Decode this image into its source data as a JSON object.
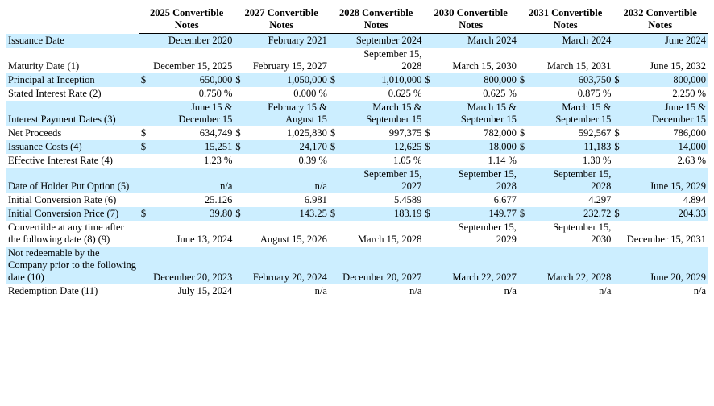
{
  "columns": [
    "2025 Convertible Notes",
    "2027 Convertible Notes",
    "2028 Convertible Notes",
    "2030 Convertible Notes",
    "2031 Convertible Notes",
    "2032 Convertible Notes"
  ],
  "rows": [
    {
      "alt": true,
      "label": "Issuance Date",
      "cur": [
        "",
        "",
        "",
        "",
        "",
        ""
      ],
      "vals": [
        "December 2020",
        "February 2021",
        "September 2024",
        "March 2024",
        "March 2024",
        "June 2024"
      ]
    },
    {
      "alt": false,
      "label": "Maturity Date (1)",
      "cur": [
        "",
        "",
        "",
        "",
        "",
        ""
      ],
      "vals": [
        "December 15, 2025",
        "February 15, 2027",
        "September 15, 2028",
        "March 15, 2030",
        "March 15, 2031",
        "June 15, 2032"
      ]
    },
    {
      "alt": true,
      "label": "Principal at Inception",
      "cur": [
        "$",
        "$",
        "$",
        "$",
        "$",
        "$"
      ],
      "vals": [
        "650,000",
        "1,050,000",
        "1,010,000",
        "800,000",
        "603,750",
        "800,000"
      ]
    },
    {
      "alt": false,
      "label": "Stated Interest Rate (2)",
      "cur": [
        "",
        "",
        "",
        "",
        "",
        ""
      ],
      "vals": [
        "0.750 %",
        "0.000 %",
        "0.625 %",
        "0.625 %",
        "0.875 %",
        "2.250 %"
      ]
    },
    {
      "alt": true,
      "label": "Interest Payment Dates (3)",
      "cur": [
        "",
        "",
        "",
        "",
        "",
        ""
      ],
      "vals": [
        "June 15 & December 15",
        "February 15 & August 15",
        "March 15 & September 15",
        "March 15 & September 15",
        "March 15 & September 15",
        "June 15 & December 15"
      ]
    },
    {
      "alt": false,
      "label": "Net Proceeds",
      "cur": [
        "$",
        "$",
        "$",
        "$",
        "$",
        "$"
      ],
      "vals": [
        "634,749",
        "1,025,830",
        "997,375",
        "782,000",
        "592,567",
        "786,000"
      ]
    },
    {
      "alt": true,
      "label": "Issuance Costs (4)",
      "cur": [
        "$",
        "$",
        "$",
        "$",
        "$",
        "$"
      ],
      "vals": [
        "15,251",
        "24,170",
        "12,625",
        "18,000",
        "11,183",
        "14,000"
      ]
    },
    {
      "alt": false,
      "label": "Effective Interest Rate (4)",
      "cur": [
        "",
        "",
        "",
        "",
        "",
        ""
      ],
      "vals": [
        "1.23 %",
        "0.39 %",
        "1.05 %",
        "1.14 %",
        "1.30 %",
        "2.63 %"
      ]
    },
    {
      "alt": true,
      "label": "Date of Holder Put Option (5)",
      "cur": [
        "",
        "",
        "",
        "",
        "",
        ""
      ],
      "vals": [
        "n/a",
        "n/a",
        "September 15, 2027",
        "September 15, 2028",
        "September 15, 2028",
        "June 15, 2029"
      ]
    },
    {
      "alt": false,
      "label": "Initial Conversion Rate (6)",
      "cur": [
        "",
        "",
        "",
        "",
        "",
        ""
      ],
      "vals": [
        "25.126",
        "6.981",
        "5.4589",
        "6.677",
        "4.297",
        "4.894"
      ]
    },
    {
      "alt": true,
      "label": "Initial Conversion Price (7)",
      "cur": [
        "$",
        "$",
        "$",
        "$",
        "$",
        "$"
      ],
      "vals": [
        "39.80",
        "143.25",
        "183.19",
        "149.77",
        "232.72",
        "204.33"
      ]
    },
    {
      "alt": false,
      "label": "Convertible at any time after the following date (8) (9)",
      "cur": [
        "",
        "",
        "",
        "",
        "",
        ""
      ],
      "vals": [
        "June 13, 2024",
        "August 15, 2026",
        "March 15, 2028",
        "September 15, 2029",
        "September 15, 2030",
        "December 15, 2031"
      ]
    },
    {
      "alt": true,
      "label": "Not redeemable by the Company prior to the following date (10)",
      "cur": [
        "",
        "",
        "",
        "",
        "",
        ""
      ],
      "vals": [
        "December 20, 2023",
        "February 20, 2024",
        "December 20, 2027",
        "March 22, 2027",
        "March 22, 2028",
        "June 20, 2029"
      ]
    },
    {
      "alt": false,
      "label": "Redemption Date (11)",
      "cur": [
        "",
        "",
        "",
        "",
        "",
        ""
      ],
      "vals": [
        "July 15, 2024",
        "n/a",
        "n/a",
        "n/a",
        "n/a",
        "n/a"
      ]
    }
  ],
  "colors": {
    "alt_row_bg": "#cceeff",
    "text": "#000000",
    "border": "#000000"
  }
}
